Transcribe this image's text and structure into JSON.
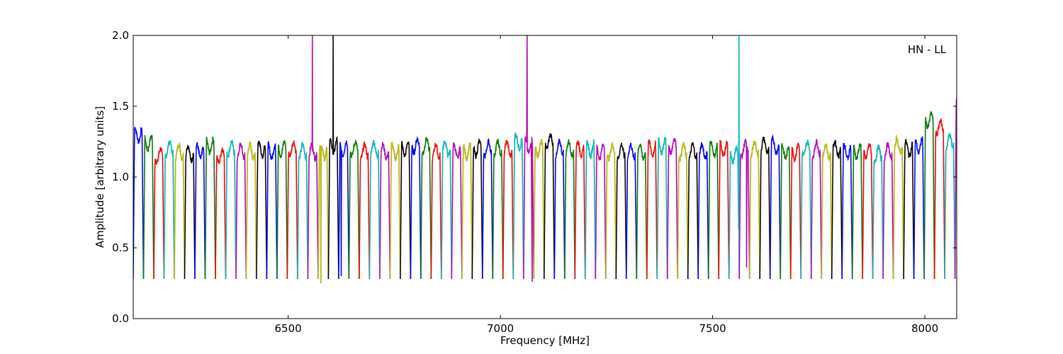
{
  "chart_data": {
    "type": "line",
    "xlabel": "Frequency [MHz]",
    "ylabel": "Amplitude [arbitrary units]",
    "annotation": "HN - LL",
    "xlim": [
      6135,
      8075
    ],
    "ylim": [
      0.0,
      2.0
    ],
    "x_ticks": [
      6500,
      7000,
      7500,
      8000
    ],
    "x_tick_labels": [
      "6500",
      "7000",
      "7500",
      "8000"
    ],
    "y_ticks": [
      0.0,
      0.5,
      1.0,
      1.5,
      2.0
    ],
    "y_tick_labels": [
      "0.0",
      "0.5",
      "1.0",
      "1.5",
      "2.0"
    ],
    "grid": false,
    "legend": "none",
    "background_series_color": "#bbbbbb",
    "channel_width_mhz": 24.2,
    "channel_start_mhz": 6135,
    "colors": [
      "#0000ff",
      "#008000",
      "#ff0000",
      "#00bfbf",
      "#bfbf00",
      "#000000",
      "#0000ff",
      "#008000",
      "#ff0000",
      "#00bfbf",
      "#bf00bf",
      "#bfbf00",
      "#000000",
      "#0000ff",
      "#008000",
      "#ff0000",
      "#00bfbf",
      "#bf00bf",
      "#bfbf00",
      "#000000",
      "#0000ff",
      "#008000",
      "#ff0000",
      "#00bfbf",
      "#bf00bf",
      "#bfbf00",
      "#000000",
      "#0000ff",
      "#008000",
      "#ff0000",
      "#00bfbf",
      "#bf00bf",
      "#bfbf00",
      "#000000",
      "#0000ff",
      "#008000",
      "#ff0000",
      "#00bfbf",
      "#bf00bf",
      "#bfbf00",
      "#000000",
      "#0000ff",
      "#008000",
      "#ff0000",
      "#00bfbf",
      "#bf00bf",
      "#bfbf00",
      "#000000",
      "#0000ff",
      "#008000",
      "#ff0000",
      "#00bfbf",
      "#bf00bf",
      "#bfbf00",
      "#000000",
      "#0000ff",
      "#008000",
      "#ff0000",
      "#00bfbf",
      "#bf00bf",
      "#bfbf00",
      "#000000",
      "#0000ff",
      "#008000",
      "#ff0000",
      "#00bfbf",
      "#bf00bf",
      "#bfbf00",
      "#000000",
      "#0000ff",
      "#008000",
      "#ff0000",
      "#00bfbf",
      "#bf00bf",
      "#bfbf00",
      "#000000",
      "#0000ff",
      "#008000",
      "#ff0000",
      "#00bfbf",
      "#bf00bf"
    ],
    "plateaus": [
      1.3,
      1.24,
      1.15,
      1.2,
      1.18,
      1.17,
      1.18,
      1.22,
      1.15,
      1.2,
      1.18,
      1.18,
      1.2,
      1.18,
      1.2,
      1.2,
      1.18,
      1.18,
      1.18,
      1.22,
      1.2,
      1.2,
      1.18,
      1.2,
      1.18,
      1.18,
      1.2,
      1.22,
      1.22,
      1.18,
      1.2,
      1.18,
      1.18,
      1.2,
      1.2,
      1.2,
      1.2,
      1.25,
      1.22,
      1.2,
      1.25,
      1.2,
      1.2,
      1.2,
      1.2,
      1.18,
      1.18,
      1.18,
      1.18,
      1.18,
      1.2,
      1.22,
      1.22,
      1.18,
      1.18,
      1.18,
      1.2,
      1.2,
      1.15,
      1.2,
      1.2,
      1.22,
      1.22,
      1.18,
      1.18,
      1.2,
      1.2,
      1.18,
      1.2,
      1.18,
      1.18,
      1.18,
      1.16,
      1.18,
      1.22,
      1.2,
      1.22,
      1.4,
      1.35,
      1.25,
      1.55
    ],
    "spikes": [
      {
        "x": 6557,
        "y": 2.0,
        "color": "#ff0000"
      },
      {
        "x": 6606,
        "y": 2.0,
        "color": "#008000"
      },
      {
        "x": 7063,
        "y": 2.0,
        "color": "#bf00bf"
      },
      {
        "x": 7562,
        "y": 2.0,
        "color": "#000000"
      }
    ],
    "dips": [
      {
        "x": 6577,
        "y": 0.25
      },
      {
        "x": 6625,
        "y": 0.3
      },
      {
        "x": 7075,
        "y": 0.26
      },
      {
        "x": 7580,
        "y": 0.36
      }
    ]
  }
}
